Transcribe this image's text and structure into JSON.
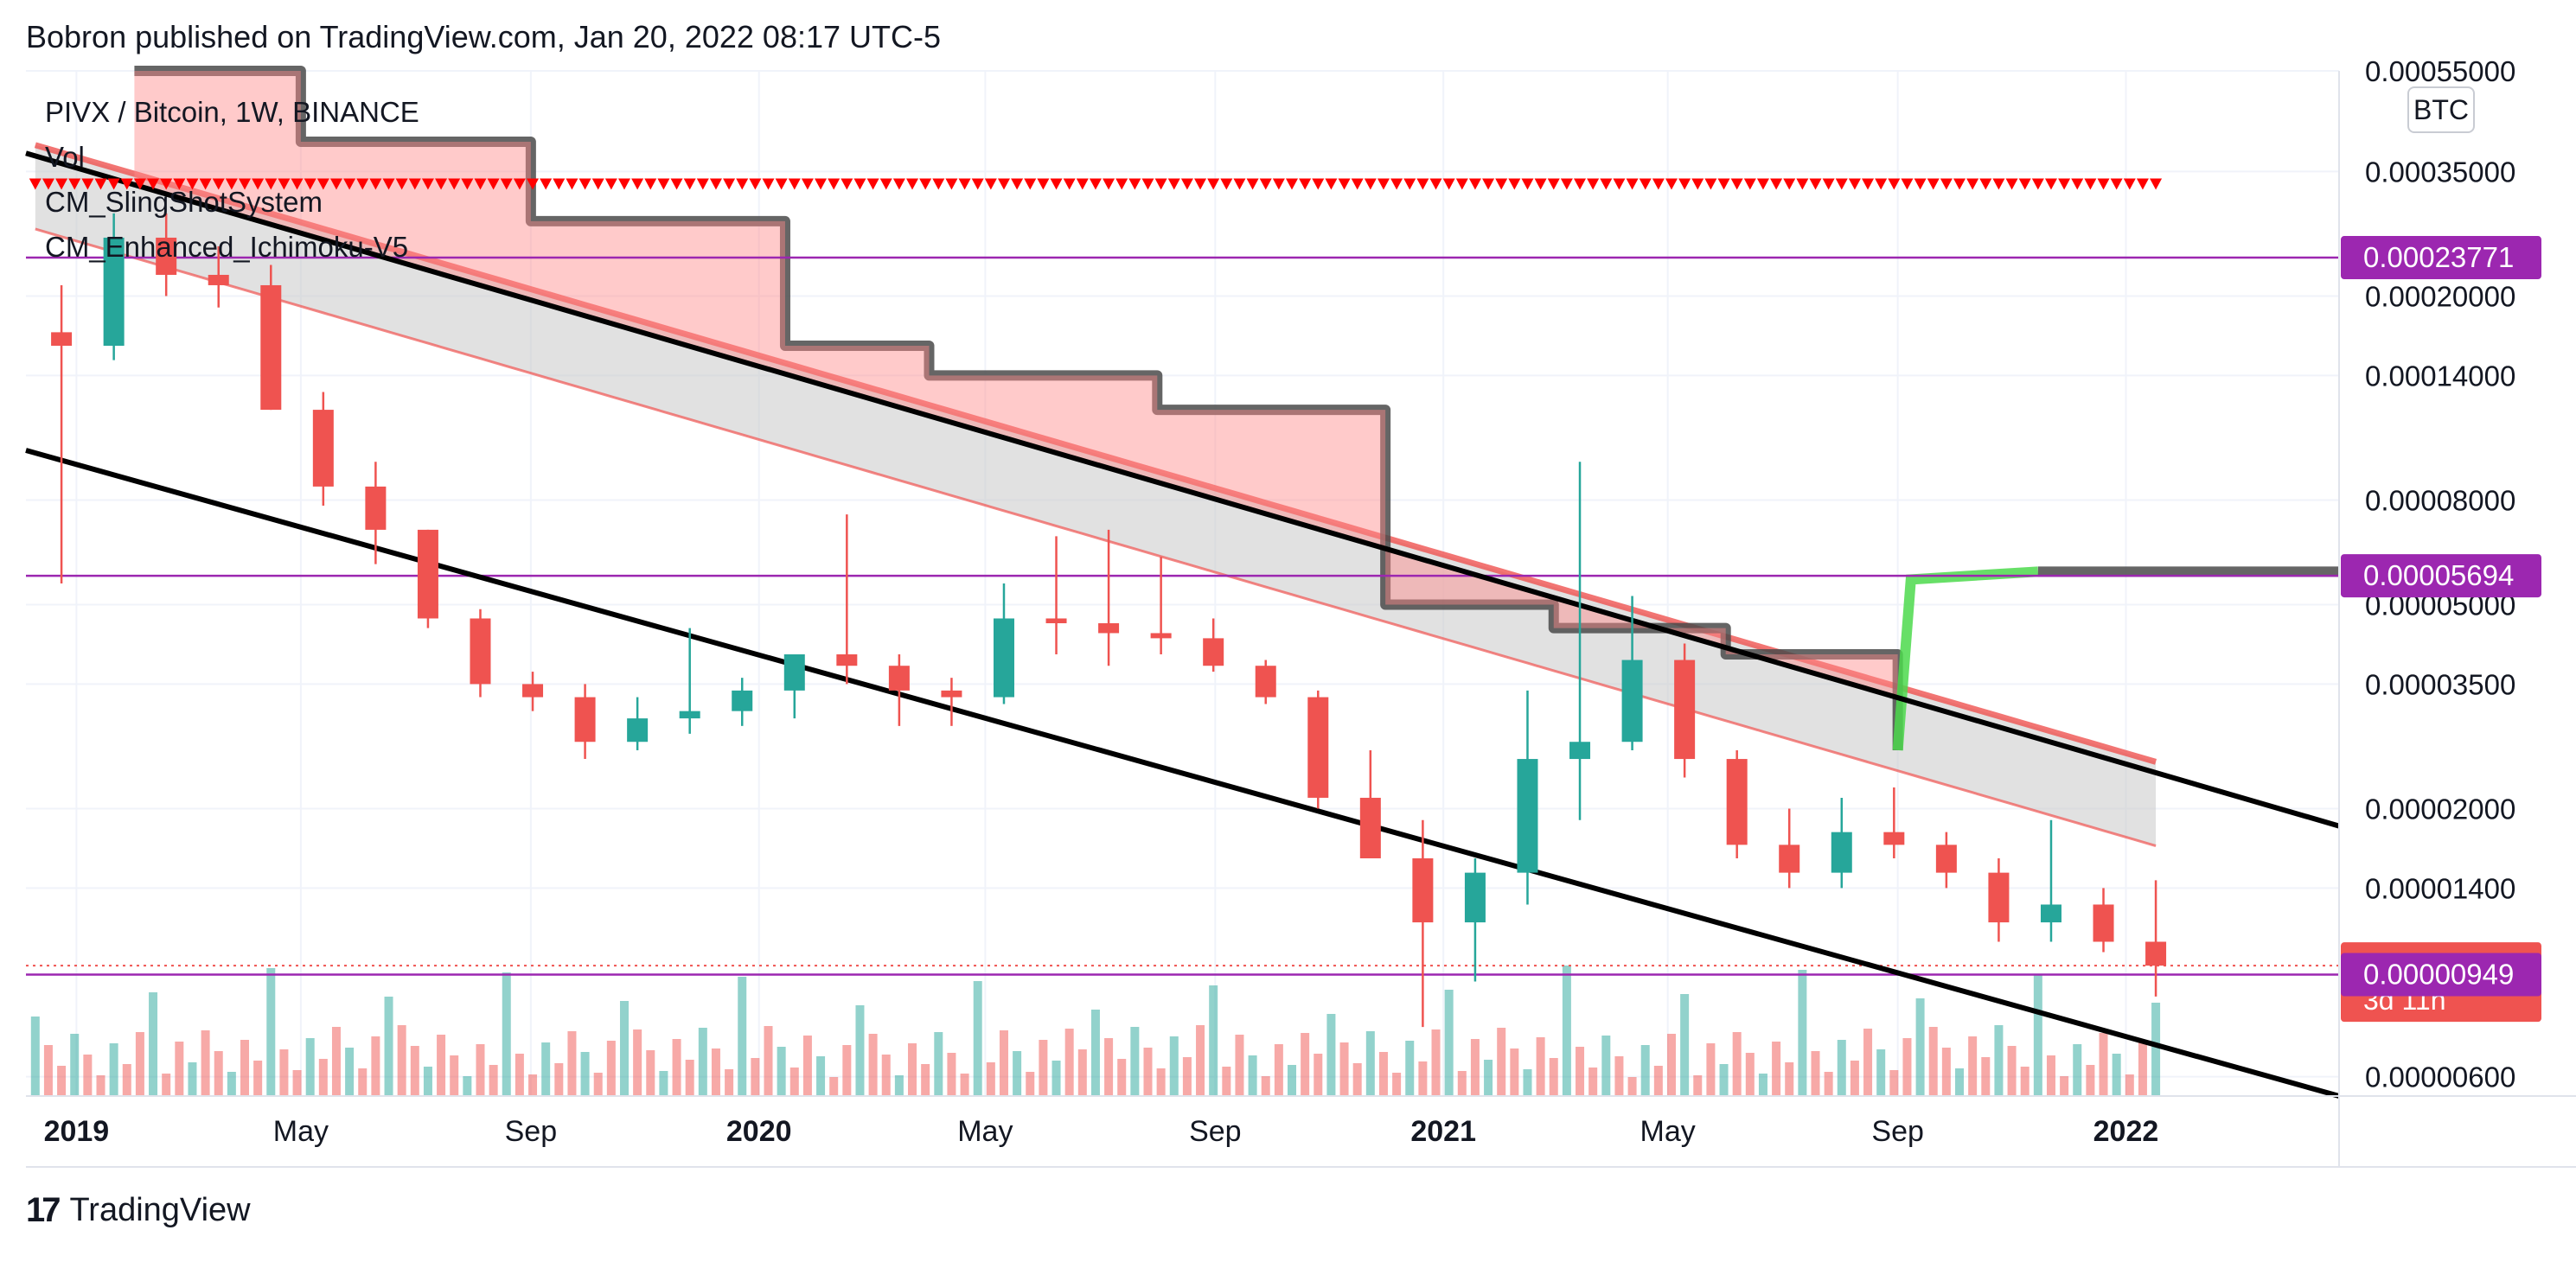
{
  "header": {
    "published": "Bobron published on TradingView.com, Jan 20, 2022 08:17 UTC-5"
  },
  "legend": {
    "symbol": "PIVX / Bitcoin, 1W, BINANCE",
    "indicators": [
      "Vol",
      "CM_SlingShotSystem",
      "CM_Enhanced_Ichimoku-V5"
    ]
  },
  "currency_badge": "BTC",
  "footer": {
    "brand": "TradingView",
    "logo_text": "17"
  },
  "colors": {
    "up": "#26a69a",
    "down": "#ef5350",
    "cloud_red": "#ff8a8a",
    "cloud_grey": "#c8c8c8",
    "purple": "#9c27b0",
    "trend": "#000000",
    "kijun": "#4a4a4a",
    "green_line": "#4cd94c"
  },
  "chart_data": {
    "type": "candlestick",
    "title": "PIVX / Bitcoin, 1W, BINANCE",
    "y_scale": "log",
    "ylim": [
      5.5e-06,
      0.00055
    ],
    "y_ticks": [
      {
        "value": 0.00055,
        "label": "0.00055000"
      },
      {
        "value": 0.00035,
        "label": "0.00035000"
      },
      {
        "value": 0.0002,
        "label": "0.00020000"
      },
      {
        "value": 0.00014,
        "label": "0.00014000"
      },
      {
        "value": 8e-05,
        "label": "0.00008000"
      },
      {
        "value": 5e-05,
        "label": "0.00005000"
      },
      {
        "value": 3.5e-05,
        "label": "0.00003500"
      },
      {
        "value": 2e-05,
        "label": "0.00002000"
      },
      {
        "value": 1.4e-05,
        "label": "0.00001400"
      },
      {
        "value": 6e-06,
        "label": "0.00000600"
      }
    ],
    "x_ticks": [
      {
        "date": "2019-01",
        "label": "2019",
        "bold": true
      },
      {
        "date": "2019-05",
        "label": "May",
        "bold": false
      },
      {
        "date": "2019-09",
        "label": "Sep",
        "bold": false
      },
      {
        "date": "2020-01",
        "label": "2020",
        "bold": true
      },
      {
        "date": "2020-05",
        "label": "May",
        "bold": false
      },
      {
        "date": "2020-09",
        "label": "Sep",
        "bold": false
      },
      {
        "date": "2021-01",
        "label": "2021",
        "bold": true
      },
      {
        "date": "2021-05",
        "label": "May",
        "bold": false
      },
      {
        "date": "2021-09",
        "label": "Sep",
        "bold": false
      },
      {
        "date": "2022-01",
        "label": "2022",
        "bold": true
      }
    ],
    "price_labels": [
      {
        "value": 0.00023771,
        "label": "0.00023771",
        "color": "#9c27b0",
        "sub": ""
      },
      {
        "value": 5.694e-05,
        "label": "0.00005694",
        "color": "#9c27b0",
        "sub": ""
      },
      {
        "value": 9.88e-06,
        "label": "0.00000988",
        "color": "#ef5350",
        "sub": "3d 11h"
      },
      {
        "value": 9.49e-06,
        "label": "0.00000949",
        "color": "#9c27b0",
        "sub": ""
      }
    ],
    "horizontal_lines": [
      0.00023771,
      5.694e-05,
      9.49e-06
    ],
    "last_close": 9.88e-06,
    "trendlines": [
      {
        "from": {
          "date": "2018-12-05",
          "value": 0.00038
        },
        "to": {
          "date": "2022-04-25",
          "value": 1.85e-05
        }
      },
      {
        "from": {
          "date": "2018-12-05",
          "value": 0.0001
        },
        "to": {
          "date": "2022-04-25",
          "value": 5.5e-06
        }
      }
    ],
    "candles_weekly_approx": [
      {
        "date": "2018-12-24",
        "o": 0.00017,
        "h": 0.00021,
        "l": 5.5e-05,
        "c": 0.00016
      },
      {
        "date": "2019-01-21",
        "o": 0.00016,
        "h": 0.00029,
        "l": 0.00015,
        "c": 0.00026
      },
      {
        "date": "2019-02-18",
        "o": 0.00026,
        "h": 0.00029,
        "l": 0.0002,
        "c": 0.00022
      },
      {
        "date": "2019-03-18",
        "o": 0.00022,
        "h": 0.00025,
        "l": 0.00019,
        "c": 0.00021
      },
      {
        "date": "2019-04-15",
        "o": 0.00021,
        "h": 0.00023,
        "l": 0.00012,
        "c": 0.00012
      },
      {
        "date": "2019-05-13",
        "o": 0.00012,
        "h": 0.00013,
        "l": 7.8e-05,
        "c": 8.5e-05
      },
      {
        "date": "2019-06-10",
        "o": 8.5e-05,
        "h": 9.5e-05,
        "l": 6e-05,
        "c": 7e-05
      },
      {
        "date": "2019-07-08",
        "o": 7e-05,
        "h": 7e-05,
        "l": 4.5e-05,
        "c": 4.7e-05
      },
      {
        "date": "2019-08-05",
        "o": 4.7e-05,
        "h": 4.9e-05,
        "l": 3.3e-05,
        "c": 3.5e-05
      },
      {
        "date": "2019-09-02",
        "o": 3.5e-05,
        "h": 3.7e-05,
        "l": 3.1e-05,
        "c": 3.3e-05
      },
      {
        "date": "2019-09-30",
        "o": 3.3e-05,
        "h": 3.5e-05,
        "l": 2.5e-05,
        "c": 2.7e-05
      },
      {
        "date": "2019-10-28",
        "o": 2.7e-05,
        "h": 3.3e-05,
        "l": 2.6e-05,
        "c": 3e-05
      },
      {
        "date": "2019-11-25",
        "o": 3e-05,
        "h": 4.5e-05,
        "l": 2.8e-05,
        "c": 3.1e-05
      },
      {
        "date": "2019-12-23",
        "o": 3.1e-05,
        "h": 3.6e-05,
        "l": 2.9e-05,
        "c": 3.4e-05
      },
      {
        "date": "2020-01-20",
        "o": 3.4e-05,
        "h": 3.8e-05,
        "l": 3e-05,
        "c": 4e-05
      },
      {
        "date": "2020-02-17",
        "o": 4e-05,
        "h": 7.5e-05,
        "l": 3.5e-05,
        "c": 3.8e-05
      },
      {
        "date": "2020-03-16",
        "o": 3.8e-05,
        "h": 4e-05,
        "l": 2.9e-05,
        "c": 3.4e-05
      },
      {
        "date": "2020-04-13",
        "o": 3.4e-05,
        "h": 3.6e-05,
        "l": 2.9e-05,
        "c": 3.3e-05
      },
      {
        "date": "2020-05-11",
        "o": 3.3e-05,
        "h": 5.5e-05,
        "l": 3.2e-05,
        "c": 4.7e-05
      },
      {
        "date": "2020-06-08",
        "o": 4.7e-05,
        "h": 6.8e-05,
        "l": 4e-05,
        "c": 4.6e-05
      },
      {
        "date": "2020-07-06",
        "o": 4.6e-05,
        "h": 7e-05,
        "l": 3.8e-05,
        "c": 4.4e-05
      },
      {
        "date": "2020-08-03",
        "o": 4.4e-05,
        "h": 6.2e-05,
        "l": 4e-05,
        "c": 4.3e-05
      },
      {
        "date": "2020-08-31",
        "o": 4.3e-05,
        "h": 4.7e-05,
        "l": 3.7e-05,
        "c": 3.8e-05
      },
      {
        "date": "2020-09-28",
        "o": 3.8e-05,
        "h": 3.9e-05,
        "l": 3.2e-05,
        "c": 3.3e-05
      },
      {
        "date": "2020-10-26",
        "o": 3.3e-05,
        "h": 3.4e-05,
        "l": 2e-05,
        "c": 2.1e-05
      },
      {
        "date": "2020-11-23",
        "o": 2.1e-05,
        "h": 2.6e-05,
        "l": 1.7e-05,
        "c": 1.6e-05
      },
      {
        "date": "2020-12-21",
        "o": 1.6e-05,
        "h": 1.9e-05,
        "l": 7.5e-06,
        "c": 1.2e-05
      },
      {
        "date": "2021-01-18",
        "o": 1.2e-05,
        "h": 1.6e-05,
        "l": 9.2e-06,
        "c": 1.5e-05
      },
      {
        "date": "2021-02-15",
        "o": 1.5e-05,
        "h": 3.4e-05,
        "l": 1.3e-05,
        "c": 2.5e-05
      },
      {
        "date": "2021-03-15",
        "o": 2.5e-05,
        "h": 9.5e-05,
        "l": 1.9e-05,
        "c": 2.7e-05
      },
      {
        "date": "2021-04-12",
        "o": 2.7e-05,
        "h": 5.2e-05,
        "l": 2.6e-05,
        "c": 3.9e-05
      },
      {
        "date": "2021-05-10",
        "o": 3.9e-05,
        "h": 4.2e-05,
        "l": 2.3e-05,
        "c": 2.5e-05
      },
      {
        "date": "2021-06-07",
        "o": 2.5e-05,
        "h": 2.6e-05,
        "l": 1.6e-05,
        "c": 1.7e-05
      },
      {
        "date": "2021-07-05",
        "o": 1.7e-05,
        "h": 2e-05,
        "l": 1.4e-05,
        "c": 1.5e-05
      },
      {
        "date": "2021-08-02",
        "o": 1.5e-05,
        "h": 2.1e-05,
        "l": 1.4e-05,
        "c": 1.8e-05
      },
      {
        "date": "2021-08-30",
        "o": 1.8e-05,
        "h": 2.2e-05,
        "l": 1.6e-05,
        "c": 1.7e-05
      },
      {
        "date": "2021-09-27",
        "o": 1.7e-05,
        "h": 1.8e-05,
        "l": 1.4e-05,
        "c": 1.5e-05
      },
      {
        "date": "2021-10-25",
        "o": 1.5e-05,
        "h": 1.6e-05,
        "l": 1.1e-05,
        "c": 1.2e-05
      },
      {
        "date": "2021-11-22",
        "o": 1.2e-05,
        "h": 1.9e-05,
        "l": 1.1e-05,
        "c": 1.3e-05
      },
      {
        "date": "2021-12-20",
        "o": 1.3e-05,
        "h": 1.4e-05,
        "l": 1.05e-05,
        "c": 1.1e-05
      },
      {
        "date": "2022-01-17",
        "o": 1.1e-05,
        "h": 1.45e-05,
        "l": 8.6e-06,
        "c": 9.88e-06
      }
    ]
  }
}
